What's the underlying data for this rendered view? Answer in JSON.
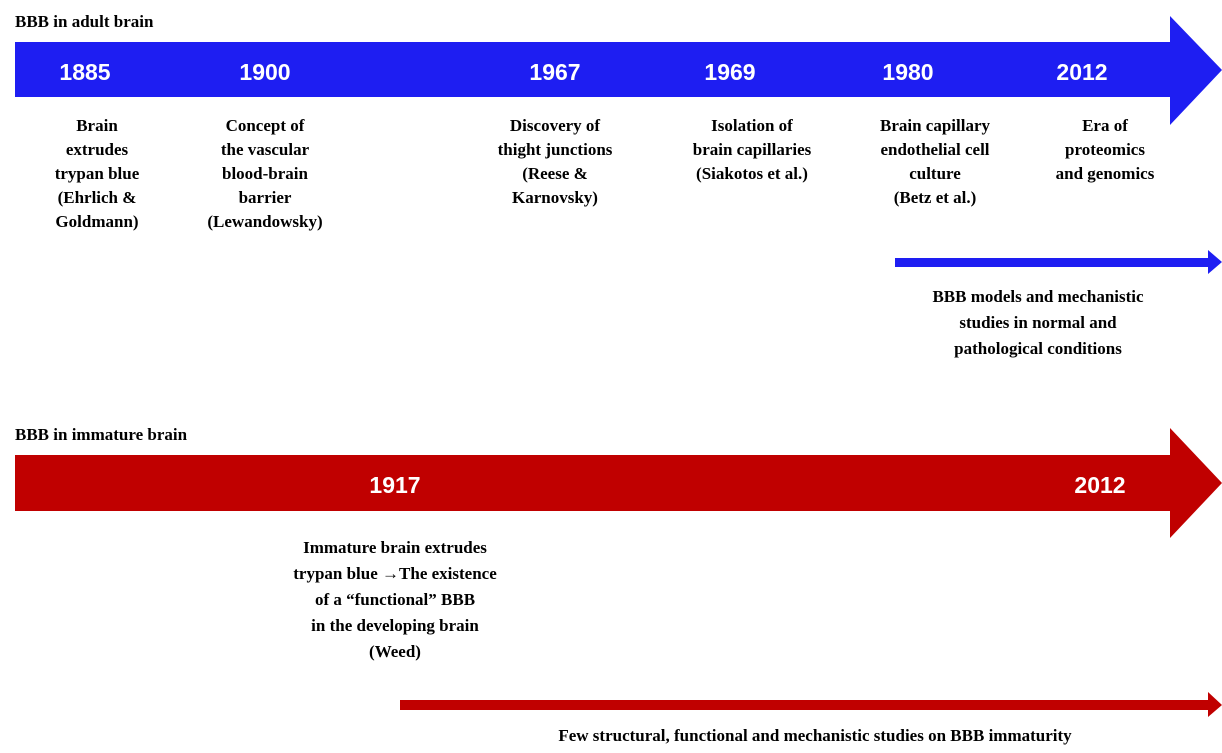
{
  "timelines": [
    {
      "label": "BBB in adult brain",
      "events": [
        {
          "year": "1885",
          "description": [
            "Brain",
            "extrudes",
            "trypan blue",
            "(Ehrlich &",
            "Goldmann)"
          ]
        },
        {
          "year": "1900",
          "description": [
            "Concept of",
            "the vascular",
            "blood-brain",
            "barrier",
            "(Lewandowsky)"
          ]
        },
        {
          "year": "1967",
          "description": [
            "Discovery of",
            "thight junctions",
            "(Reese &",
            "Karnovsky)"
          ]
        },
        {
          "year": "1969",
          "description": [
            "Isolation of",
            "brain capillaries",
            "(Siakotos et al.)"
          ]
        },
        {
          "year": "1980",
          "description": [
            "Brain capillary",
            "endothelial cell",
            "culture",
            "(Betz et al.)"
          ]
        },
        {
          "year": "2012",
          "description": [
            "Era of",
            "proteomics",
            "and genomics"
          ]
        }
      ],
      "note": [
        "BBB  models and mechanistic",
        "studies in normal and",
        "pathological conditions"
      ]
    },
    {
      "label": "BBB in immature brain",
      "events": [
        {
          "year": "1917",
          "description": [
            "Immature brain extrudes",
            "trypan blue →The existence",
            "of a “functional” BBB",
            "in the developing brain",
            "(Weed)"
          ]
        },
        {
          "year": "2012",
          "description": []
        }
      ],
      "note": [
        "Few structural, functional and mechanistic studies on BBB immaturity"
      ]
    }
  ]
}
